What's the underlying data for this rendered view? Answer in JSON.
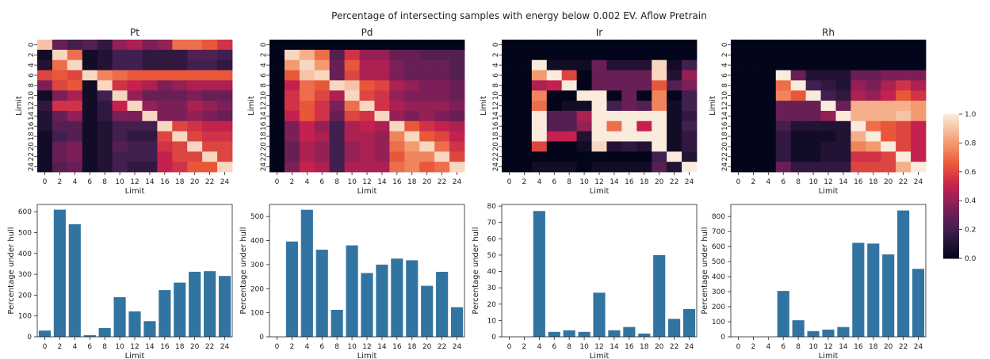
{
  "suptitle": "Percentage of intersecting samples with energy below 0.002 EV. Aflow Pretrain",
  "colorbar": {
    "ticks": [
      "0.0",
      "0.2",
      "0.4",
      "0.6",
      "0.8",
      "1.0"
    ],
    "range": [
      0,
      1
    ],
    "colormap": "rocket"
  },
  "chart_data": [
    {
      "type": "heatmap",
      "title": "Pt",
      "xlabel": "Limit",
      "ylabel": "Limit",
      "tick_labels": [
        "0",
        "2",
        "4",
        "6",
        "8",
        "10",
        "12",
        "14",
        "16",
        "18",
        "20",
        "22",
        "24"
      ],
      "vmin": 0,
      "vmax": 1,
      "values": [
        [
          0.9,
          0.3,
          0.2,
          0.25,
          0.15,
          0.4,
          0.45,
          0.35,
          0.4,
          0.7,
          0.7,
          0.65,
          0.55
        ],
        [
          0.05,
          0.95,
          0.7,
          0.05,
          0.1,
          0.2,
          0.2,
          0.15,
          0.15,
          0.15,
          0.25,
          0.25,
          0.2
        ],
        [
          0.1,
          0.7,
          0.95,
          0.05,
          0.1,
          0.2,
          0.2,
          0.15,
          0.15,
          0.15,
          0.2,
          0.2,
          0.15
        ],
        [
          0.6,
          0.65,
          0.6,
          0.95,
          0.75,
          0.7,
          0.65,
          0.65,
          0.65,
          0.65,
          0.65,
          0.65,
          0.65
        ],
        [
          0.35,
          0.6,
          0.65,
          0.05,
          0.95,
          0.55,
          0.5,
          0.45,
          0.35,
          0.4,
          0.45,
          0.45,
          0.45
        ],
        [
          0.05,
          0.35,
          0.45,
          0.05,
          0.2,
          0.95,
          0.4,
          0.3,
          0.3,
          0.3,
          0.35,
          0.3,
          0.3
        ],
        [
          0.15,
          0.55,
          0.55,
          0.05,
          0.15,
          0.5,
          0.95,
          0.4,
          0.35,
          0.35,
          0.45,
          0.4,
          0.35
        ],
        [
          0.1,
          0.3,
          0.4,
          0.05,
          0.15,
          0.35,
          0.35,
          0.95,
          0.35,
          0.35,
          0.4,
          0.35,
          0.3
        ],
        [
          0.1,
          0.25,
          0.25,
          0.05,
          0.1,
          0.2,
          0.2,
          0.2,
          0.95,
          0.6,
          0.55,
          0.5,
          0.5
        ],
        [
          0.05,
          0.2,
          0.25,
          0.05,
          0.1,
          0.2,
          0.15,
          0.15,
          0.6,
          0.95,
          0.6,
          0.55,
          0.55
        ],
        [
          0.05,
          0.3,
          0.35,
          0.05,
          0.1,
          0.25,
          0.2,
          0.2,
          0.55,
          0.6,
          0.95,
          0.6,
          0.6
        ],
        [
          0.05,
          0.3,
          0.35,
          0.05,
          0.1,
          0.2,
          0.2,
          0.2,
          0.5,
          0.6,
          0.6,
          0.95,
          0.6
        ],
        [
          0.05,
          0.25,
          0.3,
          0.05,
          0.1,
          0.2,
          0.15,
          0.15,
          0.5,
          0.55,
          0.65,
          0.65,
          0.95
        ]
      ]
    },
    {
      "type": "heatmap",
      "title": "Pd",
      "xlabel": "Limit",
      "ylabel": "Limit",
      "tick_labels": [
        "0",
        "2",
        "4",
        "6",
        "8",
        "10",
        "12",
        "14",
        "16",
        "18",
        "20",
        "22",
        "24"
      ],
      "vmin": 0,
      "vmax": 1,
      "values": [
        [
          0,
          0,
          0,
          0,
          0,
          0,
          0,
          0,
          0,
          0,
          0,
          0,
          0
        ],
        [
          0,
          0.95,
          0.85,
          0.7,
          0.25,
          0.55,
          0.4,
          0.4,
          0.3,
          0.3,
          0.25,
          0.25,
          0.25
        ],
        [
          0,
          0.8,
          0.95,
          0.8,
          0.3,
          0.65,
          0.45,
          0.45,
          0.35,
          0.3,
          0.3,
          0.3,
          0.25
        ],
        [
          0,
          0.65,
          0.9,
          0.95,
          0.3,
          0.6,
          0.45,
          0.45,
          0.35,
          0.3,
          0.3,
          0.3,
          0.25
        ],
        [
          0,
          0.5,
          0.7,
          0.65,
          0.95,
          0.9,
          0.65,
          0.6,
          0.45,
          0.4,
          0.35,
          0.35,
          0.3
        ],
        [
          0,
          0.55,
          0.7,
          0.6,
          0.45,
          0.95,
          0.6,
          0.55,
          0.4,
          0.35,
          0.35,
          0.35,
          0.3
        ],
        [
          0,
          0.55,
          0.65,
          0.55,
          0.35,
          0.7,
          0.95,
          0.55,
          0.45,
          0.4,
          0.4,
          0.4,
          0.35
        ],
        [
          0,
          0.5,
          0.65,
          0.55,
          0.3,
          0.6,
          0.55,
          0.95,
          0.4,
          0.35,
          0.4,
          0.35,
          0.3
        ],
        [
          0,
          0.35,
          0.5,
          0.4,
          0.2,
          0.45,
          0.5,
          0.45,
          0.95,
          0.65,
          0.55,
          0.5,
          0.45
        ],
        [
          0,
          0.35,
          0.5,
          0.45,
          0.2,
          0.45,
          0.45,
          0.4,
          0.75,
          0.95,
          0.65,
          0.6,
          0.5
        ],
        [
          0,
          0.3,
          0.45,
          0.4,
          0.2,
          0.4,
          0.45,
          0.4,
          0.7,
          0.8,
          0.95,
          0.7,
          0.55
        ],
        [
          0,
          0.3,
          0.45,
          0.4,
          0.2,
          0.4,
          0.45,
          0.4,
          0.65,
          0.75,
          0.75,
          0.95,
          0.6
        ],
        [
          0,
          0.35,
          0.5,
          0.45,
          0.2,
          0.45,
          0.45,
          0.45,
          0.7,
          0.75,
          0.65,
          0.7,
          0.95
        ]
      ]
    },
    {
      "type": "heatmap",
      "title": "Ir",
      "xlabel": "Limit",
      "ylabel": "Limit",
      "tick_labels": [
        "0",
        "2",
        "4",
        "6",
        "8",
        "10",
        "12",
        "14",
        "16",
        "18",
        "20",
        "22",
        "24"
      ],
      "vmin": 0,
      "vmax": 1,
      "values": [
        [
          0,
          0,
          0,
          0,
          0,
          0,
          0,
          0,
          0,
          0,
          0,
          0,
          0
        ],
        [
          0,
          0,
          0,
          0,
          0,
          0,
          0,
          0,
          0,
          0,
          0,
          0,
          0
        ],
        [
          0,
          0,
          1,
          0.05,
          0.05,
          0.05,
          0.3,
          0.1,
          0.1,
          0.1,
          0.95,
          0.05,
          0.2
        ],
        [
          0,
          0,
          0.8,
          1,
          0.6,
          0,
          0.3,
          0.3,
          0.3,
          0.3,
          0.95,
          0.1,
          0.4
        ],
        [
          0,
          0,
          0.45,
          0.5,
          1,
          0,
          0.3,
          0.3,
          0.3,
          0.3,
          0.65,
          0.25,
          0.35
        ],
        [
          0,
          0,
          0.75,
          0,
          0,
          1,
          1,
          0,
          0.3,
          0,
          0.75,
          0,
          0.2
        ],
        [
          0,
          0,
          0.7,
          0,
          0.05,
          0.05,
          1,
          0.2,
          0.3,
          0.25,
          0.75,
          0.05,
          0.2
        ],
        [
          0,
          0,
          1,
          0.25,
          0.25,
          0.45,
          1,
          1,
          1,
          1,
          1,
          0.05,
          0.15
        ],
        [
          0,
          0,
          1,
          0.25,
          0.25,
          0.4,
          1,
          0.7,
          1,
          0.5,
          1,
          0.05,
          0.2
        ],
        [
          0,
          0,
          1,
          0.5,
          0.5,
          0.1,
          1,
          1,
          1,
          1,
          1,
          0.05,
          0.15
        ],
        [
          0,
          0,
          0.6,
          0,
          0,
          0.05,
          0.95,
          0.1,
          0.15,
          0.1,
          1,
          0.05,
          0.15
        ],
        [
          0,
          0,
          0,
          0,
          0,
          0,
          0,
          0,
          0,
          0,
          0.2,
          1,
          0.1
        ],
        [
          0,
          0,
          0.05,
          0.05,
          0.05,
          0,
          0.05,
          0.05,
          0.05,
          0.05,
          0.25,
          0.1,
          1
        ]
      ]
    },
    {
      "type": "heatmap",
      "title": "Rh",
      "xlabel": "Limit",
      "ylabel": "Limit",
      "tick_labels": [
        "0",
        "2",
        "4",
        "6",
        "8",
        "10",
        "12",
        "14",
        "16",
        "18",
        "20",
        "22",
        "24"
      ],
      "vmin": 0,
      "vmax": 1,
      "values": [
        [
          0,
          0,
          0,
          0,
          0,
          0,
          0,
          0,
          0,
          0,
          0,
          0,
          0
        ],
        [
          0,
          0,
          0,
          0,
          0,
          0,
          0,
          0,
          0,
          0,
          0,
          0,
          0
        ],
        [
          0,
          0,
          0,
          0,
          0,
          0,
          0,
          0,
          0,
          0,
          0,
          0,
          0
        ],
        [
          0,
          0,
          0,
          1,
          0.3,
          0.1,
          0.1,
          0.1,
          0.3,
          0.3,
          0.35,
          0.35,
          0.35
        ],
        [
          0,
          0,
          0,
          0.7,
          1,
          0.2,
          0.15,
          0.1,
          0.4,
          0.35,
          0.45,
          0.55,
          0.45
        ],
        [
          0,
          0,
          0,
          0.75,
          0.65,
          1,
          0.2,
          0.15,
          0.45,
          0.4,
          0.5,
          0.65,
          0.55
        ],
        [
          0,
          0,
          0,
          0.3,
          0.3,
          0.3,
          1,
          0.3,
          0.85,
          0.85,
          0.85,
          0.85,
          0.8
        ],
        [
          0,
          0,
          0,
          0.3,
          0.3,
          0.3,
          0.4,
          1,
          0.85,
          0.85,
          0.85,
          0.9,
          0.8
        ],
        [
          0,
          0,
          0,
          0.2,
          0.1,
          0.1,
          0.1,
          0.1,
          1,
          0.7,
          0.65,
          0.6,
          0.5
        ],
        [
          0,
          0,
          0,
          0.15,
          0.05,
          0.05,
          0.05,
          0.1,
          0.85,
          1,
          0.65,
          0.6,
          0.5
        ],
        [
          0,
          0,
          0,
          0.15,
          0.05,
          0.05,
          0.1,
          0.1,
          0.75,
          0.8,
          1,
          0.6,
          0.5
        ],
        [
          0,
          0,
          0,
          0.15,
          0.05,
          0.05,
          0.1,
          0.1,
          0.55,
          0.55,
          0.6,
          1,
          0.5
        ],
        [
          0,
          0,
          0,
          0.3,
          0.15,
          0.15,
          0.15,
          0.15,
          0.6,
          0.6,
          0.6,
          0.85,
          1
        ]
      ]
    },
    {
      "type": "bar",
      "title": "",
      "xlabel": "Limit",
      "ylabel": "Percentage under hull",
      "categories": [
        "0",
        "2",
        "4",
        "6",
        "8",
        "10",
        "12",
        "14",
        "16",
        "18",
        "20",
        "22",
        "24"
      ],
      "values": [
        30,
        610,
        540,
        8,
        42,
        190,
        122,
        75,
        224,
        260,
        312,
        315,
        292
      ],
      "yticks": [
        0,
        100,
        200,
        300,
        400,
        500,
        600
      ],
      "ylim": [
        0,
        635
      ]
    },
    {
      "type": "bar",
      "title": "",
      "xlabel": "Limit",
      "ylabel": "Percentage under hull",
      "categories": [
        "0",
        "2",
        "4",
        "6",
        "8",
        "10",
        "12",
        "14",
        "16",
        "18",
        "20",
        "22",
        "24"
      ],
      "values": [
        0,
        396,
        528,
        362,
        112,
        380,
        265,
        300,
        325,
        318,
        212,
        270,
        123
      ],
      "yticks": [
        0,
        100,
        200,
        300,
        400,
        500
      ],
      "ylim": [
        0,
        550
      ]
    },
    {
      "type": "bar",
      "title": "",
      "xlabel": "Limit",
      "ylabel": "Percentage under hull",
      "categories": [
        "0",
        "2",
        "4",
        "6",
        "8",
        "10",
        "12",
        "14",
        "16",
        "18",
        "20",
        "22",
        "24"
      ],
      "values": [
        0,
        0,
        77,
        3,
        4,
        3,
        27,
        4,
        6,
        2,
        50,
        11,
        17
      ],
      "yticks": [
        0,
        10,
        20,
        30,
        40,
        50,
        60,
        70,
        80
      ],
      "ylim": [
        0,
        81
      ]
    },
    {
      "type": "bar",
      "title": "",
      "xlabel": "Limit",
      "ylabel": "Percentage under hull",
      "categories": [
        "0",
        "2",
        "4",
        "6",
        "8",
        "10",
        "12",
        "14",
        "16",
        "18",
        "20",
        "22",
        "24"
      ],
      "values": [
        0,
        0,
        0,
        305,
        110,
        38,
        48,
        65,
        625,
        620,
        548,
        840,
        452
      ],
      "yticks": [
        0,
        100,
        200,
        300,
        400,
        500,
        600,
        700,
        800
      ],
      "ylim": [
        0,
        880
      ]
    }
  ]
}
